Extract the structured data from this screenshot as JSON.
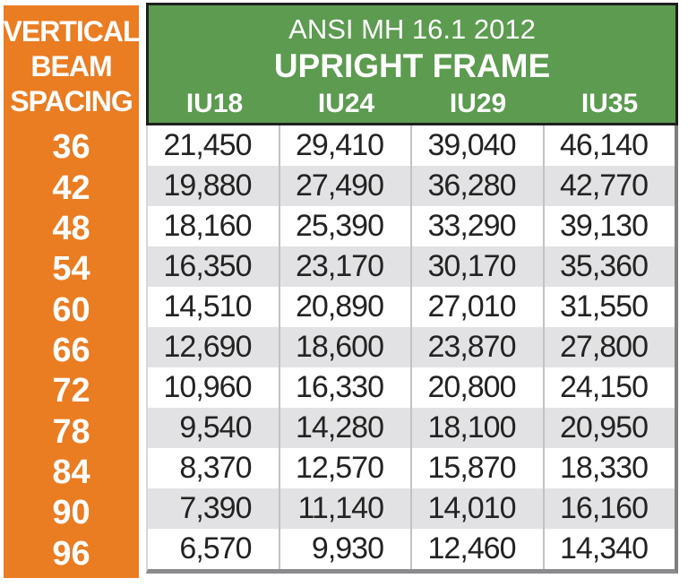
{
  "colors": {
    "orange": "#EA7C22",
    "green": "#5C9B50",
    "stripe": "#E2E2E4",
    "header_border": "#1F1F1F",
    "separator": "#C2C2C4",
    "grid_right": "#7E7E80",
    "grid_bottom": "#8B8B8D",
    "grid_left": "#D8D8DA",
    "num_text": "#232323",
    "white": "#FFFFFF"
  },
  "table": {
    "left_header_lines": [
      "VERTICAL",
      "BEAM",
      "SPACING"
    ],
    "title": "ANSI MH 16.1 2012",
    "subtitle": "UPRIGHT FRAME",
    "columns": [
      "IU18",
      "IU24",
      "IU29",
      "IU35"
    ],
    "rows": [
      {
        "spacing": "36",
        "values": [
          "21,450",
          "29,410",
          "39,040",
          "46,140"
        ]
      },
      {
        "spacing": "42",
        "values": [
          "19,880",
          "27,490",
          "36,280",
          "42,770"
        ]
      },
      {
        "spacing": "48",
        "values": [
          "18,160",
          "25,390",
          "33,290",
          "39,130"
        ]
      },
      {
        "spacing": "54",
        "values": [
          "16,350",
          "23,170",
          "30,170",
          "35,360"
        ]
      },
      {
        "spacing": "60",
        "values": [
          "14,510",
          "20,890",
          "27,010",
          "31,550"
        ]
      },
      {
        "spacing": "66",
        "values": [
          "12,690",
          "18,600",
          "23,870",
          "27,800"
        ]
      },
      {
        "spacing": "72",
        "values": [
          "10,960",
          "16,330",
          "20,800",
          "24,150"
        ]
      },
      {
        "spacing": "78",
        "values": [
          "9,540",
          "14,280",
          "18,100",
          "20,950"
        ]
      },
      {
        "spacing": "84",
        "values": [
          "8,370",
          "12,570",
          "15,870",
          "18,330"
        ]
      },
      {
        "spacing": "90",
        "values": [
          "7,390",
          "11,140",
          "14,010",
          "16,160"
        ]
      },
      {
        "spacing": "96",
        "values": [
          "6,570",
          "9,930",
          "12,460",
          "14,340"
        ]
      }
    ]
  },
  "chart_data": {
    "type": "table",
    "title": "ANSI MH 16.1 2012",
    "subtitle": "UPRIGHT FRAME",
    "row_header_label": "VERTICAL BEAM SPACING",
    "columns": [
      "IU18",
      "IU24",
      "IU29",
      "IU35"
    ],
    "row_categories": [
      36,
      42,
      48,
      54,
      60,
      66,
      72,
      78,
      84,
      90,
      96
    ],
    "values": [
      [
        21450,
        29410,
        39040,
        46140
      ],
      [
        19880,
        27490,
        36280,
        42770
      ],
      [
        18160,
        25390,
        33290,
        39130
      ],
      [
        16350,
        23170,
        30170,
        35360
      ],
      [
        14510,
        20890,
        27010,
        31550
      ],
      [
        12690,
        18600,
        23870,
        27800
      ],
      [
        10960,
        16330,
        20800,
        24150
      ],
      [
        9540,
        14280,
        18100,
        20950
      ],
      [
        8370,
        12570,
        15870,
        18330
      ],
      [
        7390,
        11140,
        14010,
        16160
      ],
      [
        6570,
        9930,
        12460,
        14340
      ]
    ],
    "layout_hints": {
      "row_stripe": "alternating white / light gray starting white",
      "header_background": "green",
      "row_header_background": "orange",
      "number_alignment": "right"
    }
  }
}
